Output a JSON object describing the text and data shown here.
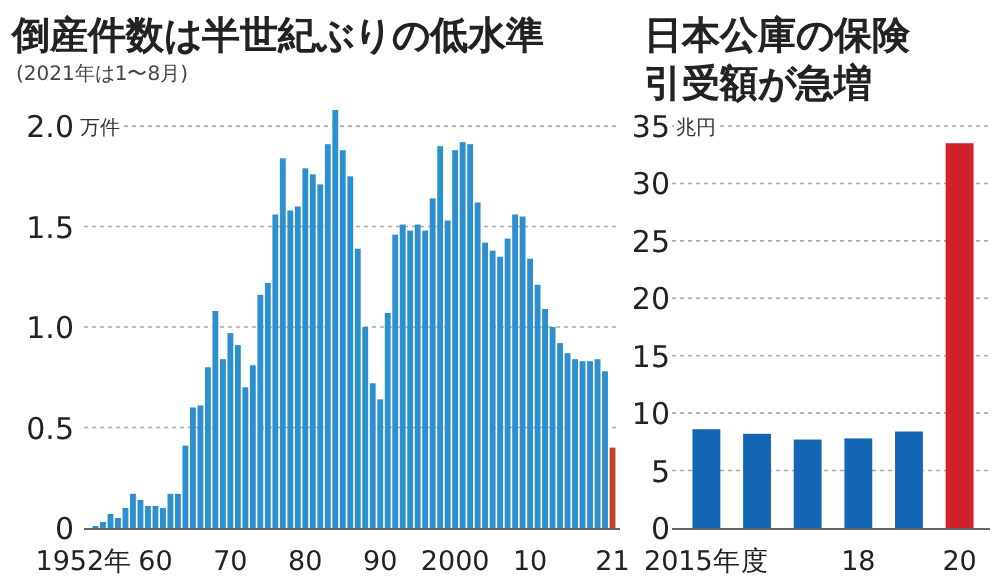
{
  "chart_data": [
    {
      "type": "bar",
      "title": "倒産件数は半世紀ぶりの低水準",
      "subtitle": "(2021年は1〜8月)",
      "ylabel": "万件",
      "x": [
        1952,
        1953,
        1954,
        1955,
        1956,
        1957,
        1958,
        1959,
        1960,
        1961,
        1962,
        1963,
        1964,
        1965,
        1966,
        1967,
        1968,
        1969,
        1970,
        1971,
        1972,
        1973,
        1974,
        1975,
        1976,
        1977,
        1978,
        1979,
        1980,
        1981,
        1982,
        1983,
        1984,
        1985,
        1986,
        1987,
        1988,
        1989,
        1990,
        1991,
        1992,
        1993,
        1994,
        1995,
        1996,
        1997,
        1998,
        1999,
        2000,
        2001,
        2002,
        2003,
        2004,
        2005,
        2006,
        2007,
        2008,
        2009,
        2010,
        2011,
        2012,
        2013,
        2014,
        2015,
        2016,
        2017,
        2018,
        2019,
        2020,
        2021
      ],
      "values": [
        0.01,
        0.03,
        0.07,
        0.05,
        0.1,
        0.17,
        0.14,
        0.11,
        0.11,
        0.1,
        0.17,
        0.17,
        0.41,
        0.6,
        0.61,
        0.8,
        1.08,
        0.84,
        0.97,
        0.91,
        0.7,
        0.81,
        1.16,
        1.22,
        1.56,
        1.84,
        1.58,
        1.6,
        1.79,
        1.76,
        1.71,
        1.91,
        2.08,
        1.88,
        1.75,
        1.39,
        1.0,
        0.72,
        0.64,
        1.07,
        1.46,
        1.51,
        1.48,
        1.51,
        1.48,
        1.64,
        1.9,
        1.53,
        1.88,
        1.92,
        1.91,
        1.62,
        1.42,
        1.38,
        1.35,
        1.44,
        1.56,
        1.55,
        1.34,
        1.21,
        1.09,
        1.0,
        0.92,
        0.87,
        0.84,
        0.83,
        0.83,
        0.84,
        0.78,
        0.4
      ],
      "colors": [
        "#2e8fd0",
        "#2e8fd0",
        "#2e8fd0",
        "#2e8fd0",
        "#2e8fd0",
        "#2e8fd0",
        "#2e8fd0",
        "#2e8fd0",
        "#2e8fd0",
        "#2e8fd0",
        "#2e8fd0",
        "#2e8fd0",
        "#2e8fd0",
        "#2e8fd0",
        "#2e8fd0",
        "#2e8fd0",
        "#2e8fd0",
        "#2e8fd0",
        "#2e8fd0",
        "#2e8fd0",
        "#2e8fd0",
        "#2e8fd0",
        "#2e8fd0",
        "#2e8fd0",
        "#2e8fd0",
        "#2e8fd0",
        "#2e8fd0",
        "#2e8fd0",
        "#2e8fd0",
        "#2e8fd0",
        "#2e8fd0",
        "#2e8fd0",
        "#2e8fd0",
        "#2e8fd0",
        "#2e8fd0",
        "#2e8fd0",
        "#2e8fd0",
        "#2e8fd0",
        "#2e8fd0",
        "#2e8fd0",
        "#2e8fd0",
        "#2e8fd0",
        "#2e8fd0",
        "#2e8fd0",
        "#2e8fd0",
        "#2e8fd0",
        "#2e8fd0",
        "#2e8fd0",
        "#2e8fd0",
        "#2e8fd0",
        "#2e8fd0",
        "#2e8fd0",
        "#2e8fd0",
        "#2e8fd0",
        "#2e8fd0",
        "#2e8fd0",
        "#2e8fd0",
        "#2e8fd0",
        "#2e8fd0",
        "#2e8fd0",
        "#2e8fd0",
        "#2e8fd0",
        "#2e8fd0",
        "#2e8fd0",
        "#2e8fd0",
        "#2e8fd0",
        "#2e8fd0",
        "#2e8fd0",
        "#2e8fd0",
        "#c7422b"
      ],
      "xlim": [
        1951,
        2022
      ],
      "ylim": [
        0,
        2.1
      ],
      "xticks": [
        {
          "value": 1952,
          "label": "1952年"
        },
        {
          "value": 1960,
          "label": "60"
        },
        {
          "value": 1970,
          "label": "70"
        },
        {
          "value": 1980,
          "label": "80"
        },
        {
          "value": 1990,
          "label": "90"
        },
        2000,
        {
          "value": 2010,
          "label": "10"
        },
        {
          "value": 2021,
          "label": "21"
        }
      ],
      "yticks": [
        0,
        0.5,
        {
          "value": 1,
          "label": "1.0"
        },
        1.5,
        {
          "value": 2,
          "label": "2.0"
        }
      ],
      "grid": "y"
    },
    {
      "type": "bar",
      "title": "日本公庫の保険引受額が急増",
      "ylabel": "兆円",
      "x": [
        2015,
        2016,
        2017,
        2018,
        2019,
        2020
      ],
      "values": [
        8.6,
        8.2,
        7.7,
        7.8,
        8.4,
        33.5
      ],
      "colors": [
        "#1565b5",
        "#1565b5",
        "#1565b5",
        "#1565b5",
        "#1565b5",
        "#d0202a"
      ],
      "xlim": [
        2014.4,
        2020.6
      ],
      "ylim": [
        0,
        35
      ],
      "xticks": [
        {
          "value": 2015,
          "label": "2015年度"
        },
        {
          "value": 2018,
          "label": "18"
        },
        {
          "value": 2020,
          "label": "20"
        }
      ],
      "yticks": [
        0,
        5,
        10,
        15,
        20,
        25,
        30,
        35
      ],
      "grid": "y"
    }
  ]
}
